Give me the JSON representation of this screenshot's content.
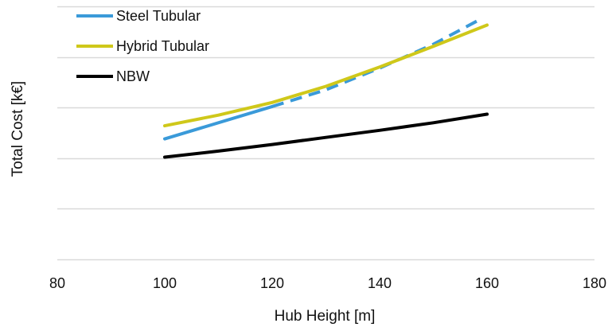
{
  "chart_data": {
    "type": "line",
    "title": "",
    "xlabel": "Hub Height  [m]",
    "ylabel": "Total Cost [k€]",
    "xlim": [
      80,
      180
    ],
    "xticks": [
      80,
      100,
      120,
      140,
      160,
      180
    ],
    "ylim": [
      0,
      5
    ],
    "yticks_labeled": false,
    "grid": "horizontal",
    "legend_position": "top-left",
    "series": [
      {
        "name": "Steel Tubular",
        "color": "#3a9ad9",
        "segments": [
          {
            "style": "solid",
            "x": [
              100,
              120
            ],
            "y": [
              2.38,
              3.02
            ]
          },
          {
            "style": "dashed",
            "x": [
              120,
              130,
              140,
              150,
              159
            ],
            "y": [
              3.02,
              3.35,
              3.78,
              4.25,
              4.76
            ]
          }
        ]
      },
      {
        "name": "Hybrid Tubular",
        "color": "#cfc81a",
        "segments": [
          {
            "style": "solid",
            "x": [
              100,
              110,
              120,
              130,
              140,
              150,
              160
            ],
            "y": [
              2.64,
              2.85,
              3.1,
              3.42,
              3.8,
              4.21,
              4.63
            ]
          }
        ]
      },
      {
        "name": "NBW",
        "color": "#000000",
        "segments": [
          {
            "style": "solid",
            "x": [
              100,
              110,
              120,
              130,
              140,
              150,
              160
            ],
            "y": [
              2.02,
              2.14,
              2.27,
              2.41,
              2.55,
              2.7,
              2.87
            ]
          }
        ]
      }
    ]
  }
}
